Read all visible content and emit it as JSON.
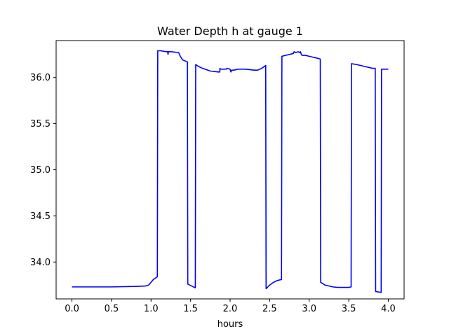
{
  "chart_data": {
    "type": "line",
    "title": "Water Depth h at gauge 1",
    "xlabel": "hours",
    "ylabel": "",
    "xlim": [
      -0.2,
      4.2
    ],
    "ylim": [
      33.6,
      36.4
    ],
    "x_ticks": [
      0.0,
      0.5,
      1.0,
      1.5,
      2.0,
      2.5,
      3.0,
      3.5,
      4.0
    ],
    "x_tick_labels": [
      "0.0",
      "0.5",
      "1.0",
      "1.5",
      "2.0",
      "2.5",
      "3.0",
      "3.5",
      "4.0"
    ],
    "y_ticks": [
      34.0,
      34.5,
      35.0,
      35.5,
      36.0
    ],
    "y_tick_labels": [
      "34.0",
      "34.5",
      "35.0",
      "35.5",
      "36.0"
    ],
    "grid": false,
    "line_color": "#0000ff",
    "series": [
      {
        "x": [
          0.0,
          0.5,
          0.8,
          0.93,
          0.97,
          1.0,
          1.03,
          1.08,
          1.085,
          1.12,
          1.19,
          1.21,
          1.215,
          1.22,
          1.25,
          1.35,
          1.37,
          1.4,
          1.46,
          1.465,
          1.56,
          1.565,
          1.6,
          1.65,
          1.75,
          1.85,
          1.87,
          1.871,
          1.88,
          1.92,
          1.95,
          1.96,
          2.0,
          2.01,
          2.02,
          2.05,
          2.1,
          2.2,
          2.3,
          2.35,
          2.4,
          2.45,
          2.455,
          2.5,
          2.55,
          2.6,
          2.65,
          2.655,
          2.7,
          2.75,
          2.8,
          2.81,
          2.83,
          2.86,
          2.88,
          2.89,
          2.9,
          2.91,
          2.95,
          3.0,
          3.05,
          3.1,
          3.14,
          3.145,
          3.2,
          3.3,
          3.36,
          3.4,
          3.45,
          3.5,
          3.53,
          3.535,
          3.6,
          3.7,
          3.8,
          3.835,
          3.84,
          3.91,
          3.915,
          4.0
        ],
        "y": [
          33.73,
          33.73,
          33.735,
          33.74,
          33.75,
          33.78,
          33.81,
          33.84,
          36.29,
          36.29,
          36.28,
          36.28,
          36.25,
          36.28,
          36.28,
          36.27,
          36.23,
          36.19,
          36.17,
          33.76,
          33.72,
          36.14,
          36.12,
          36.1,
          36.07,
          36.06,
          36.06,
          36.1,
          36.09,
          36.09,
          36.09,
          36.1,
          36.09,
          36.06,
          36.08,
          36.08,
          36.09,
          36.09,
          36.08,
          36.08,
          36.1,
          36.13,
          33.71,
          33.75,
          33.78,
          33.8,
          33.81,
          36.23,
          36.24,
          36.25,
          36.26,
          36.28,
          36.27,
          36.28,
          36.27,
          36.28,
          36.25,
          36.24,
          36.24,
          36.23,
          36.22,
          36.21,
          36.2,
          33.78,
          33.75,
          33.73,
          33.725,
          33.725,
          33.725,
          33.725,
          33.73,
          36.15,
          36.14,
          36.12,
          36.1,
          36.1,
          33.68,
          33.67,
          36.09,
          36.09
        ]
      }
    ]
  }
}
